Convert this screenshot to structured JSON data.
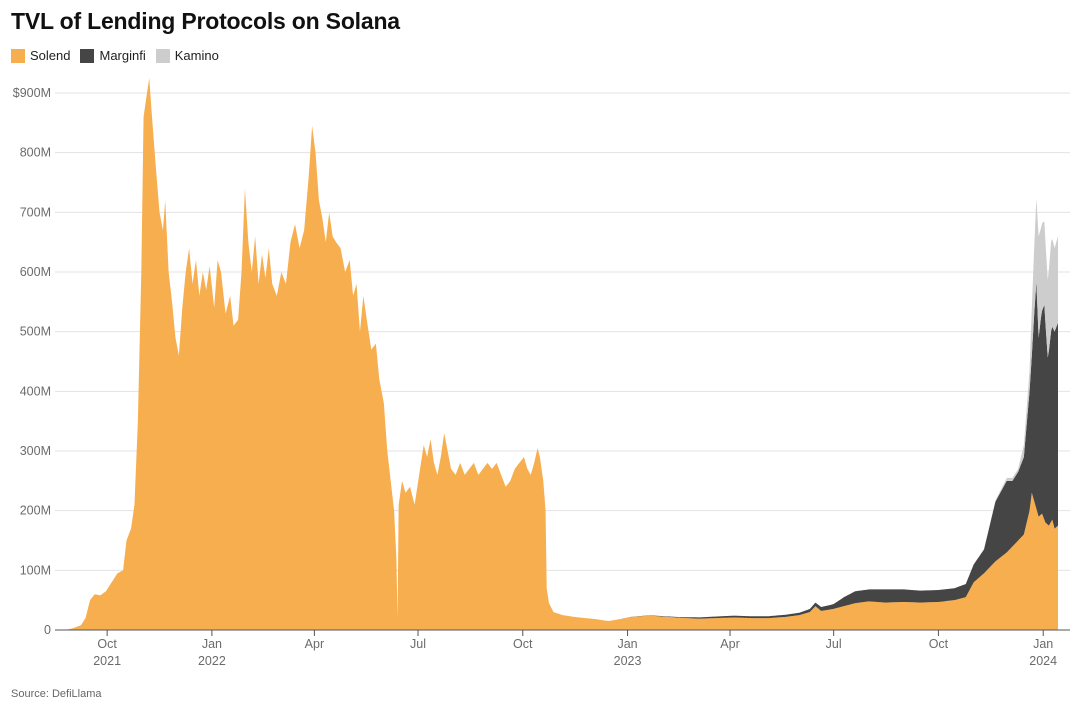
{
  "chart_data": {
    "type": "area",
    "stacked": true,
    "title": "TVL of Lending Protocols on Solana",
    "source": "Source: DefiLlama",
    "xlabel": "",
    "ylabel": "",
    "ylim": [
      0,
      900000000
    ],
    "y_ticks": [
      {
        "value": 0,
        "label": "0"
      },
      {
        "value": 100000000,
        "label": "100M"
      },
      {
        "value": 200000000,
        "label": "200M"
      },
      {
        "value": 300000000,
        "label": "300M"
      },
      {
        "value": 400000000,
        "label": "400M"
      },
      {
        "value": 500000000,
        "label": "500M"
      },
      {
        "value": 600000000,
        "label": "600M"
      },
      {
        "value": 700000000,
        "label": "700M"
      },
      {
        "value": 800000000,
        "label": "800M"
      },
      {
        "value": 900000000,
        "label": "$900M"
      }
    ],
    "x_range": [
      "2021-08-25",
      "2024-01-14"
    ],
    "x_ticks": [
      {
        "date": "2021-10-01",
        "label": "Oct",
        "year": "2021"
      },
      {
        "date": "2022-01-01",
        "label": "Jan",
        "year": "2022"
      },
      {
        "date": "2022-04-01",
        "label": "Apr",
        "year": ""
      },
      {
        "date": "2022-07-01",
        "label": "Jul",
        "year": ""
      },
      {
        "date": "2022-10-01",
        "label": "Oct",
        "year": ""
      },
      {
        "date": "2023-01-01",
        "label": "Jan",
        "year": "2023"
      },
      {
        "date": "2023-04-01",
        "label": "Apr",
        "year": ""
      },
      {
        "date": "2023-07-01",
        "label": "Jul",
        "year": ""
      },
      {
        "date": "2023-10-01",
        "label": "Oct",
        "year": ""
      },
      {
        "date": "2024-01-01",
        "label": "Jan",
        "year": "2024"
      }
    ],
    "grid": true,
    "legend_position": "top-left",
    "series": [
      {
        "name": "Solend",
        "color": "#f7ae4f",
        "points": [
          [
            "2021-08-25",
            0
          ],
          [
            "2021-09-01",
            3
          ],
          [
            "2021-09-08",
            8
          ],
          [
            "2021-09-12",
            20
          ],
          [
            "2021-09-16",
            50
          ],
          [
            "2021-09-20",
            60
          ],
          [
            "2021-09-25",
            58
          ],
          [
            "2021-09-30",
            65
          ],
          [
            "2021-10-05",
            80
          ],
          [
            "2021-10-10",
            95
          ],
          [
            "2021-10-15",
            100
          ],
          [
            "2021-10-18",
            150
          ],
          [
            "2021-10-22",
            170
          ],
          [
            "2021-10-25",
            210
          ],
          [
            "2021-10-28",
            350
          ],
          [
            "2021-10-31",
            600
          ],
          [
            "2021-11-02",
            860
          ],
          [
            "2021-11-05",
            900
          ],
          [
            "2021-11-07",
            925
          ],
          [
            "2021-11-09",
            870
          ],
          [
            "2021-11-11",
            820
          ],
          [
            "2021-11-13",
            770
          ],
          [
            "2021-11-16",
            700
          ],
          [
            "2021-11-19",
            670
          ],
          [
            "2021-11-21",
            720
          ],
          [
            "2021-11-24",
            600
          ],
          [
            "2021-11-27",
            550
          ],
          [
            "2021-11-30",
            490
          ],
          [
            "2021-12-03",
            460
          ],
          [
            "2021-12-06",
            540
          ],
          [
            "2021-12-09",
            600
          ],
          [
            "2021-12-12",
            640
          ],
          [
            "2021-12-15",
            580
          ],
          [
            "2021-12-18",
            620
          ],
          [
            "2021-12-21",
            560
          ],
          [
            "2021-12-24",
            600
          ],
          [
            "2021-12-27",
            570
          ],
          [
            "2021-12-30",
            610
          ],
          [
            "2022-01-03",
            540
          ],
          [
            "2022-01-06",
            620
          ],
          [
            "2022-01-09",
            600
          ],
          [
            "2022-01-13",
            530
          ],
          [
            "2022-01-17",
            560
          ],
          [
            "2022-01-20",
            510
          ],
          [
            "2022-01-24",
            520
          ],
          [
            "2022-01-27",
            600
          ],
          [
            "2022-01-30",
            740
          ],
          [
            "2022-02-02",
            650
          ],
          [
            "2022-02-05",
            600
          ],
          [
            "2022-02-08",
            660
          ],
          [
            "2022-02-11",
            580
          ],
          [
            "2022-02-14",
            630
          ],
          [
            "2022-02-17",
            590
          ],
          [
            "2022-02-20",
            640
          ],
          [
            "2022-02-23",
            580
          ],
          [
            "2022-02-27",
            560
          ],
          [
            "2022-03-03",
            600
          ],
          [
            "2022-03-07",
            580
          ],
          [
            "2022-03-11",
            650
          ],
          [
            "2022-03-15",
            680
          ],
          [
            "2022-03-19",
            640
          ],
          [
            "2022-03-23",
            670
          ],
          [
            "2022-03-27",
            760
          ],
          [
            "2022-03-30",
            845
          ],
          [
            "2022-04-02",
            800
          ],
          [
            "2022-04-05",
            720
          ],
          [
            "2022-04-08",
            690
          ],
          [
            "2022-04-11",
            650
          ],
          [
            "2022-04-14",
            700
          ],
          [
            "2022-04-17",
            660
          ],
          [
            "2022-04-20",
            650
          ],
          [
            "2022-04-24",
            640
          ],
          [
            "2022-04-28",
            600
          ],
          [
            "2022-05-02",
            620
          ],
          [
            "2022-05-05",
            560
          ],
          [
            "2022-05-08",
            580
          ],
          [
            "2022-05-11",
            500
          ],
          [
            "2022-05-14",
            560
          ],
          [
            "2022-05-17",
            520
          ],
          [
            "2022-05-21",
            470
          ],
          [
            "2022-05-25",
            480
          ],
          [
            "2022-05-28",
            420
          ],
          [
            "2022-06-01",
            380
          ],
          [
            "2022-06-04",
            300
          ],
          [
            "2022-06-07",
            250
          ],
          [
            "2022-06-10",
            200
          ],
          [
            "2022-06-12",
            120
          ],
          [
            "2022-06-13",
            20
          ],
          [
            "2022-06-14",
            210
          ],
          [
            "2022-06-17",
            250
          ],
          [
            "2022-06-20",
            230
          ],
          [
            "2022-06-24",
            240
          ],
          [
            "2022-06-28",
            210
          ],
          [
            "2022-07-02",
            260
          ],
          [
            "2022-07-06",
            310
          ],
          [
            "2022-07-09",
            290
          ],
          [
            "2022-07-12",
            320
          ],
          [
            "2022-07-15",
            280
          ],
          [
            "2022-07-18",
            260
          ],
          [
            "2022-07-21",
            290
          ],
          [
            "2022-07-24",
            330
          ],
          [
            "2022-07-27",
            300
          ],
          [
            "2022-07-30",
            270
          ],
          [
            "2022-08-03",
            260
          ],
          [
            "2022-08-07",
            280
          ],
          [
            "2022-08-11",
            260
          ],
          [
            "2022-08-15",
            270
          ],
          [
            "2022-08-19",
            280
          ],
          [
            "2022-08-23",
            260
          ],
          [
            "2022-08-27",
            270
          ],
          [
            "2022-08-31",
            280
          ],
          [
            "2022-09-04",
            270
          ],
          [
            "2022-09-08",
            280
          ],
          [
            "2022-09-12",
            260
          ],
          [
            "2022-09-16",
            240
          ],
          [
            "2022-09-20",
            250
          ],
          [
            "2022-09-24",
            270
          ],
          [
            "2022-09-28",
            280
          ],
          [
            "2022-10-02",
            290
          ],
          [
            "2022-10-05",
            270
          ],
          [
            "2022-10-08",
            260
          ],
          [
            "2022-10-11",
            280
          ],
          [
            "2022-10-14",
            305
          ],
          [
            "2022-10-16",
            290
          ],
          [
            "2022-10-19",
            250
          ],
          [
            "2022-10-21",
            200
          ],
          [
            "2022-10-22",
            70
          ],
          [
            "2022-10-24",
            45
          ],
          [
            "2022-10-28",
            30
          ],
          [
            "2022-11-05",
            25
          ],
          [
            "2022-11-15",
            22
          ],
          [
            "2022-11-25",
            20
          ],
          [
            "2022-12-05",
            18
          ],
          [
            "2022-12-15",
            15
          ],
          [
            "2022-12-25",
            18
          ],
          [
            "2023-01-05",
            22
          ],
          [
            "2023-01-20",
            24
          ],
          [
            "2023-02-05",
            22
          ],
          [
            "2023-02-20",
            20
          ],
          [
            "2023-03-05",
            19
          ],
          [
            "2023-03-20",
            20
          ],
          [
            "2023-04-05",
            21
          ],
          [
            "2023-04-20",
            20
          ],
          [
            "2023-05-05",
            20
          ],
          [
            "2023-05-20",
            22
          ],
          [
            "2023-06-01",
            25
          ],
          [
            "2023-06-10",
            30
          ],
          [
            "2023-06-15",
            40
          ],
          [
            "2023-06-20",
            32
          ],
          [
            "2023-06-30",
            35
          ],
          [
            "2023-07-10",
            40
          ],
          [
            "2023-07-20",
            45
          ],
          [
            "2023-08-01",
            48
          ],
          [
            "2023-08-15",
            46
          ],
          [
            "2023-09-01",
            47
          ],
          [
            "2023-09-15",
            46
          ],
          [
            "2023-10-01",
            47
          ],
          [
            "2023-10-15",
            50
          ],
          [
            "2023-10-25",
            55
          ],
          [
            "2023-11-01",
            80
          ],
          [
            "2023-11-10",
            95
          ],
          [
            "2023-11-20",
            115
          ],
          [
            "2023-11-30",
            130
          ],
          [
            "2023-12-10",
            150
          ],
          [
            "2023-12-15",
            160
          ],
          [
            "2023-12-20",
            200
          ],
          [
            "2023-12-22",
            230
          ],
          [
            "2023-12-25",
            210
          ],
          [
            "2023-12-28",
            190
          ],
          [
            "2023-12-31",
            195
          ],
          [
            "2024-01-03",
            180
          ],
          [
            "2024-01-06",
            175
          ],
          [
            "2024-01-09",
            185
          ],
          [
            "2024-01-11",
            170
          ],
          [
            "2024-01-14",
            175
          ]
        ]
      },
      {
        "name": "Marginfi",
        "color": "#454545",
        "points": [
          [
            "2022-12-20",
            0
          ],
          [
            "2023-02-15",
            1
          ],
          [
            "2023-03-01",
            2
          ],
          [
            "2023-04-01",
            3
          ],
          [
            "2023-05-01",
            3
          ],
          [
            "2023-06-01",
            4
          ],
          [
            "2023-07-01",
            8
          ],
          [
            "2023-07-10",
            15
          ],
          [
            "2023-07-20",
            20
          ],
          [
            "2023-08-01",
            20
          ],
          [
            "2023-08-15",
            22
          ],
          [
            "2023-09-01",
            21
          ],
          [
            "2023-09-15",
            20
          ],
          [
            "2023-10-01",
            20
          ],
          [
            "2023-10-15",
            20
          ],
          [
            "2023-10-25",
            22
          ],
          [
            "2023-11-01",
            30
          ],
          [
            "2023-11-10",
            40
          ],
          [
            "2023-11-20",
            100
          ],
          [
            "2023-11-30",
            120
          ],
          [
            "2023-12-05",
            110
          ],
          [
            "2023-12-10",
            115
          ],
          [
            "2023-12-15",
            130
          ],
          [
            "2023-12-20",
            200
          ],
          [
            "2023-12-22",
            230
          ],
          [
            "2023-12-24",
            310
          ],
          [
            "2023-12-26",
            380
          ],
          [
            "2023-12-28",
            300
          ],
          [
            "2023-12-30",
            330
          ],
          [
            "2024-01-02",
            360
          ],
          [
            "2024-01-05",
            280
          ],
          [
            "2024-01-08",
            320
          ],
          [
            "2024-01-11",
            330
          ],
          [
            "2024-01-14",
            340
          ]
        ]
      },
      {
        "name": "Kamino",
        "color": "#cdcdcd",
        "points": [
          [
            "2023-10-01",
            0
          ],
          [
            "2023-11-01",
            0
          ],
          [
            "2023-11-20",
            2
          ],
          [
            "2023-12-01",
            5
          ],
          [
            "2023-12-10",
            5
          ],
          [
            "2023-12-15",
            20
          ],
          [
            "2023-12-20",
            35
          ],
          [
            "2023-12-22",
            80
          ],
          [
            "2023-12-24",
            110
          ],
          [
            "2023-12-26",
            140
          ],
          [
            "2023-12-28",
            170
          ],
          [
            "2023-12-30",
            150
          ],
          [
            "2024-01-02",
            140
          ],
          [
            "2024-01-05",
            130
          ],
          [
            "2024-01-08",
            150
          ],
          [
            "2024-01-11",
            140
          ],
          [
            "2024-01-14",
            145
          ]
        ]
      }
    ]
  },
  "legend": {
    "items": [
      {
        "label": "Solend",
        "color": "#f7ae4f"
      },
      {
        "label": "Marginfi",
        "color": "#454545"
      },
      {
        "label": "Kamino",
        "color": "#cdcdcd"
      }
    ]
  }
}
